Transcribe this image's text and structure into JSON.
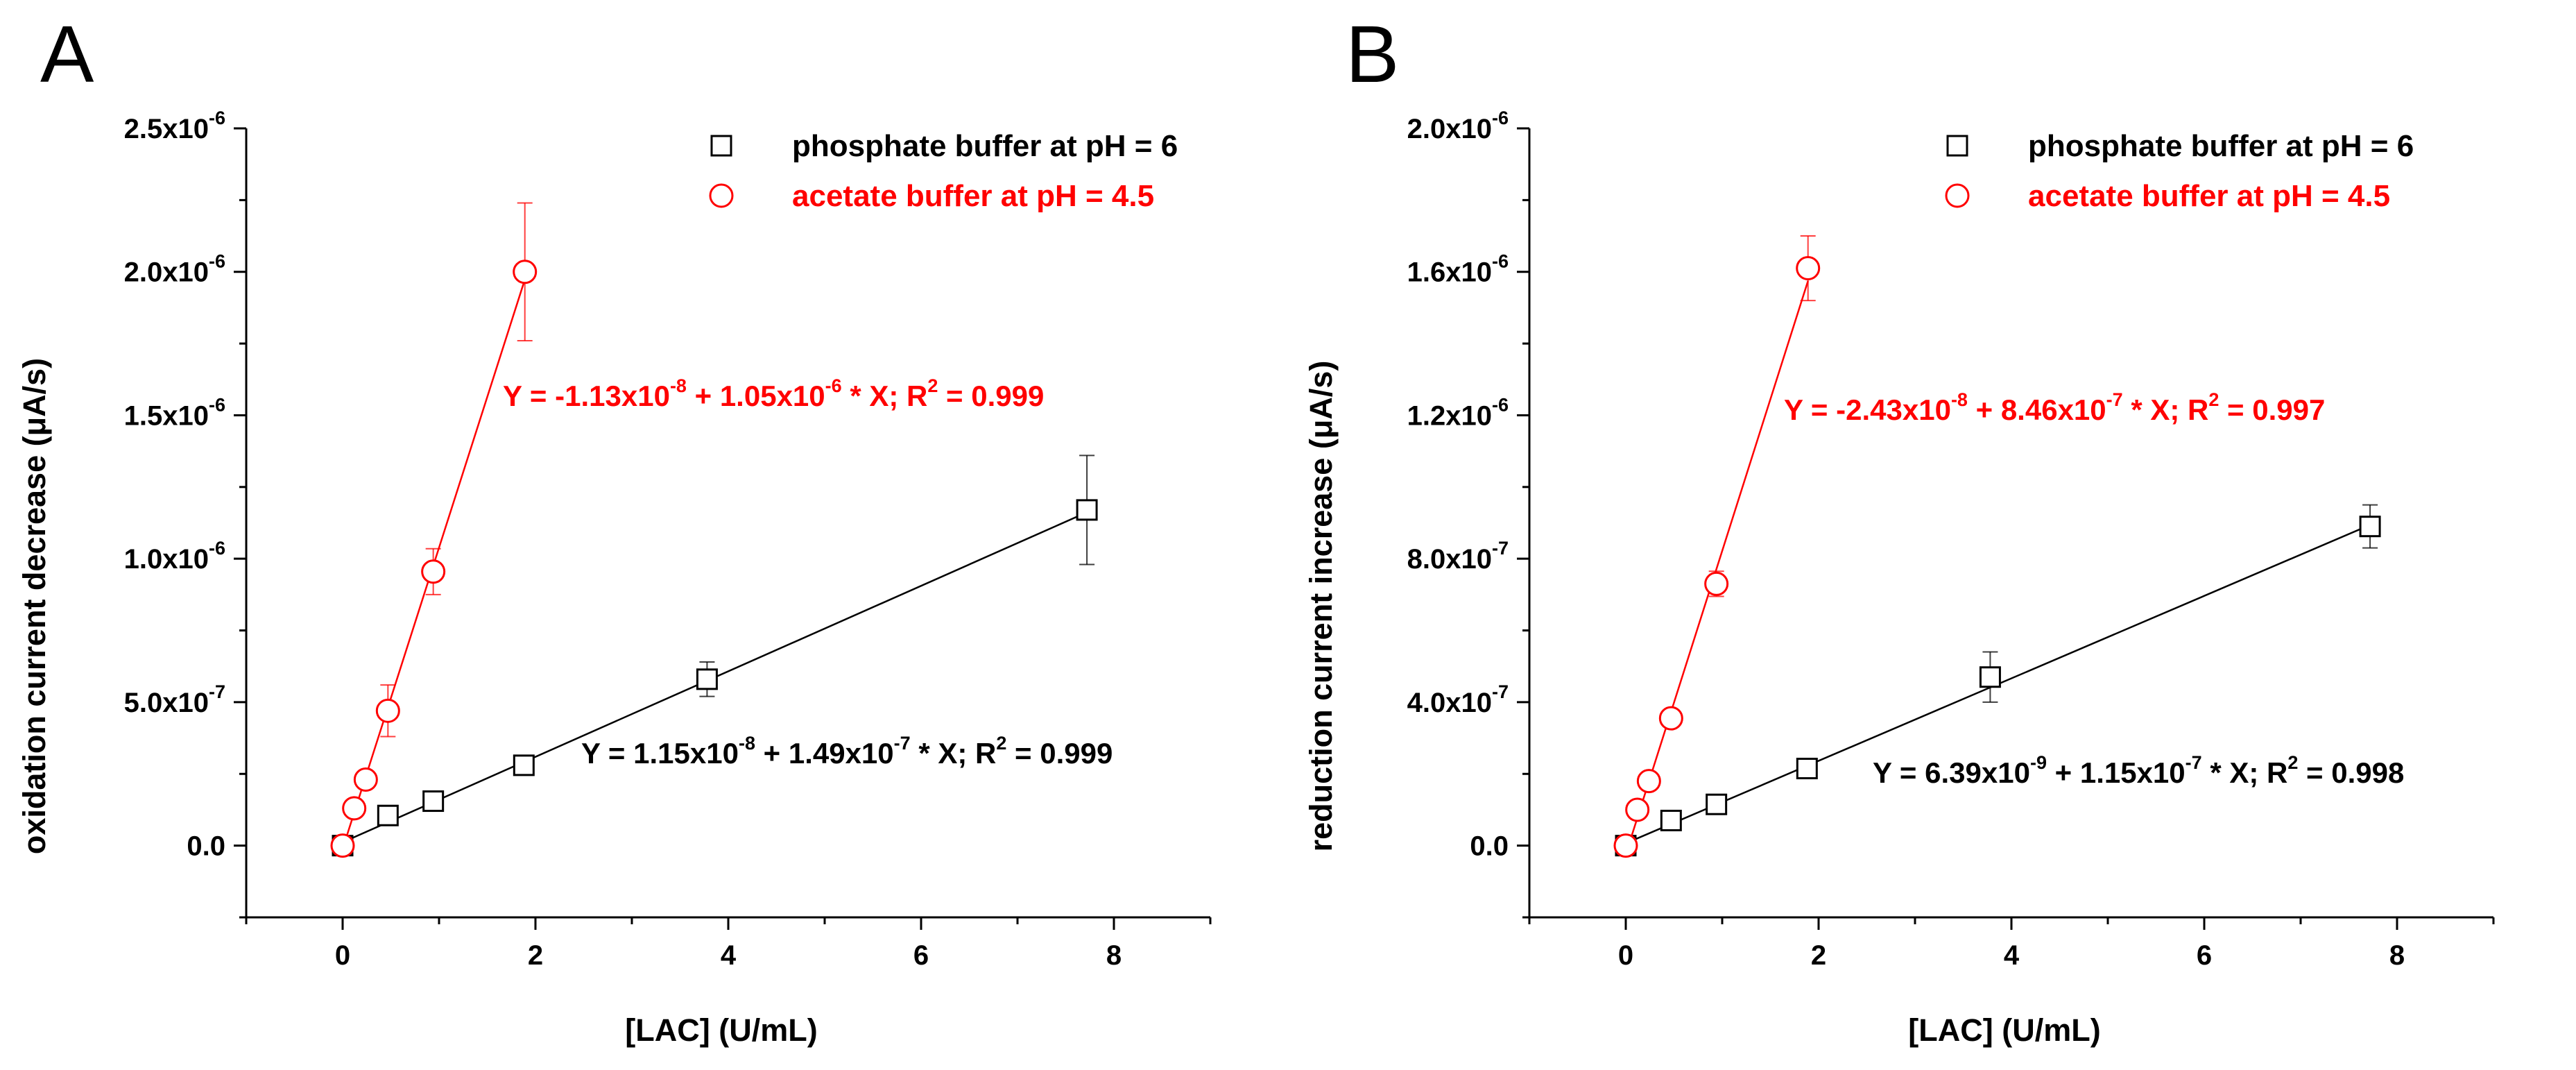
{
  "chart_data": [
    {
      "panel": "A",
      "type": "scatter",
      "xlabel": "[LAC] (U/mL)",
      "ylabel": "oxidation current decrease (μA/s)",
      "xlim": [
        -1,
        9
      ],
      "ylim": [
        -2.5e-07,
        2.5e-06
      ],
      "xticks": [
        0,
        2,
        4,
        6,
        8
      ],
      "xtick_labels": [
        "0",
        "2",
        "4",
        "6",
        "8"
      ],
      "yticks": [
        0,
        5e-07,
        1e-06,
        1.5e-06,
        2e-06,
        2.5e-06
      ],
      "ytick_labels": [
        {
          "m": "0.0",
          "e": ""
        },
        {
          "m": "5.0x10",
          "e": "-7"
        },
        {
          "m": "1.0x10",
          "e": "-6"
        },
        {
          "m": "1.5x10",
          "e": "-6"
        },
        {
          "m": "2.0x10",
          "e": "-6"
        },
        {
          "m": "2.5x10",
          "e": "-6"
        }
      ],
      "grid": false,
      "legend": "top-right",
      "series": [
        {
          "name": "phosphate buffer at pH = 6",
          "marker": "square",
          "color": "#000000",
          "x": [
            0,
            0.47,
            0.94,
            1.88,
            3.78,
            7.72
          ],
          "y": [
            0,
            1.05e-07,
            1.55e-07,
            2.8e-07,
            5.8e-07,
            1.17e-06
          ],
          "yerr": [
            0,
            1.5e-08,
            1.5e-08,
            1.5e-08,
            6e-08,
            1.9e-07
          ],
          "fit": {
            "intercept": 1.15e-08,
            "slope": 1.49e-07,
            "x_range": [
              0,
              7.72
            ]
          },
          "equation": {
            "pre": "Y = 1.15x10",
            "e1": "-8",
            "mid": " + 1.49x10",
            "e2": "-7",
            "post": " * X; R",
            "e3": "2",
            "end": " = 0.999"
          }
        },
        {
          "name": "acetate buffer at pH = 4.5",
          "marker": "circle",
          "color": "#ff0000",
          "x": [
            0,
            0.12,
            0.24,
            0.47,
            0.94,
            1.89
          ],
          "y": [
            0,
            1.3e-07,
            2.3e-07,
            4.7e-07,
            9.55e-07,
            2e-06
          ],
          "yerr": [
            0,
            1.5e-08,
            3e-08,
            9e-08,
            8e-08,
            2.4e-07
          ],
          "fit": {
            "intercept": -1.13e-08,
            "slope": 1.05e-06,
            "x_range": [
              0,
              1.89
            ]
          },
          "equation": {
            "pre": "Y = -1.13x10",
            "e1": "-8",
            "mid": " + 1.05x10",
            "e2": "-6",
            "post": " * X; R",
            "e3": "2",
            "end": " = 0.999"
          }
        }
      ]
    },
    {
      "panel": "B",
      "type": "scatter",
      "xlabel": "[LAC] (U/mL)",
      "ylabel": "reduction current increase (μA/s)",
      "xlim": [
        -1,
        9
      ],
      "ylim": [
        -2e-07,
        2e-06
      ],
      "xticks": [
        0,
        2,
        4,
        6,
        8
      ],
      "xtick_labels": [
        "0",
        "2",
        "4",
        "6",
        "8"
      ],
      "yticks": [
        0,
        4e-07,
        8e-07,
        1.2e-06,
        1.6e-06,
        2e-06
      ],
      "ytick_labels": [
        {
          "m": "0.0",
          "e": ""
        },
        {
          "m": "4.0x10",
          "e": "-7"
        },
        {
          "m": "8.0x10",
          "e": "-7"
        },
        {
          "m": "1.2x10",
          "e": "-6"
        },
        {
          "m": "1.6x10",
          "e": "-6"
        },
        {
          "m": "2.0x10",
          "e": "-6"
        }
      ],
      "grid": false,
      "legend": "top-right",
      "series": [
        {
          "name": "phosphate buffer at pH = 6",
          "marker": "square",
          "color": "#000000",
          "x": [
            0,
            0.47,
            0.94,
            1.88,
            3.78,
            7.72
          ],
          "y": [
            0,
            7e-08,
            1.15e-07,
            2.15e-07,
            4.7e-07,
            8.9e-07
          ],
          "yerr": [
            0,
            1.5e-08,
            1.5e-08,
            1.5e-08,
            7e-08,
            6e-08
          ],
          "fit": {
            "intercept": 6.39e-09,
            "slope": 1.15e-07,
            "x_range": [
              0,
              7.72
            ]
          },
          "equation": {
            "pre": "Y = 6.39x10",
            "e1": "-9",
            "mid": " + 1.15x10",
            "e2": "-7",
            "post": " * X; R",
            "e3": "2",
            "end": " = 0.998"
          }
        },
        {
          "name": "acetate buffer at pH = 4.5",
          "marker": "circle",
          "color": "#ff0000",
          "x": [
            0,
            0.12,
            0.24,
            0.47,
            0.94,
            1.89
          ],
          "y": [
            0,
            1e-07,
            1.8e-07,
            3.55e-07,
            7.3e-07,
            1.61e-06
          ],
          "yerr": [
            0,
            1.5e-08,
            1.5e-08,
            2e-08,
            3.5e-08,
            9e-08
          ],
          "fit": {
            "intercept": -2.43e-08,
            "slope": 8.46e-07,
            "x_range": [
              0,
              1.89
            ]
          },
          "equation": {
            "pre": "Y = -2.43x10",
            "e1": "-8",
            "mid": " + 8.46x10",
            "e2": "-7",
            "post": " * X; R",
            "e3": "2",
            "end": " = 0.997"
          }
        }
      ]
    }
  ]
}
